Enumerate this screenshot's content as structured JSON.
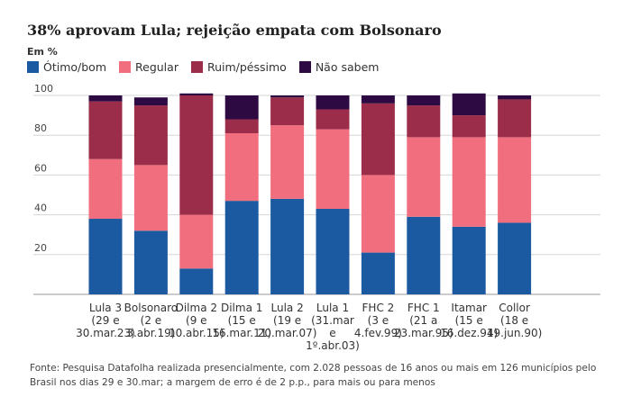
{
  "title": "38% aprovam Lula; rejeição empata com Bolsonaro",
  "unit_label": "Em %",
  "legend": [
    {
      "label": "Ótimo/bom",
      "color": "#1b5aa0"
    },
    {
      "label": "Regular",
      "color": "#f06e7d"
    },
    {
      "label": "Ruim/péssimo",
      "color": "#9b2d4b"
    },
    {
      "label": "Não sabem",
      "color": "#2d0a42"
    }
  ],
  "source": "Fonte: Pesquisa Datafolha realizada presencialmente, com 2.028 pessoas de 16 anos ou mais em 126 municípios pelo Brasil nos dias 29 e 30.mar; a margem de erro é de 2 p.p., para mais ou para menos",
  "chart_data": {
    "type": "bar",
    "stacked": true,
    "ylim": [
      0,
      100
    ],
    "yticks": [
      20,
      40,
      60,
      80,
      100
    ],
    "grid": true,
    "categories": [
      [
        "Lula 3",
        "(29 e",
        "30.mar.23)"
      ],
      [
        "Bolsonaro",
        "(2 e",
        "3.abr.19)"
      ],
      [
        "Dilma 2",
        "(9 e",
        "10.abr.15)"
      ],
      [
        "Dilma 1",
        "(15 e",
        "16.mar.11)"
      ],
      [
        "Lula 2",
        "(19 e",
        "20.mar.07)"
      ],
      [
        "Lula 1",
        "(31.mar",
        "e",
        "1º.abr.03)"
      ],
      [
        "FHC 2",
        "(3 e",
        "4.fev.99)"
      ],
      [
        "FHC 1",
        "(21 a",
        "23.mar.95)"
      ],
      [
        "Itamar",
        "(15 e",
        "16.dez.94)"
      ],
      [
        "Collor",
        "(18 e",
        "19.jun.90)"
      ]
    ],
    "series": [
      {
        "name": "Ótimo/bom",
        "values": [
          38,
          32,
          13,
          47,
          48,
          43,
          21,
          39,
          34,
          36
        ]
      },
      {
        "name": "Regular",
        "values": [
          30,
          33,
          27,
          34,
          37,
          40,
          39,
          40,
          45,
          43
        ]
      },
      {
        "name": "Ruim/péssimo",
        "values": [
          29,
          30,
          60,
          7,
          14,
          10,
          36,
          16,
          11,
          19
        ]
      },
      {
        "name": "Não sabem",
        "values": [
          3,
          4,
          1,
          12,
          1,
          7,
          4,
          5,
          11,
          2
        ]
      }
    ]
  }
}
